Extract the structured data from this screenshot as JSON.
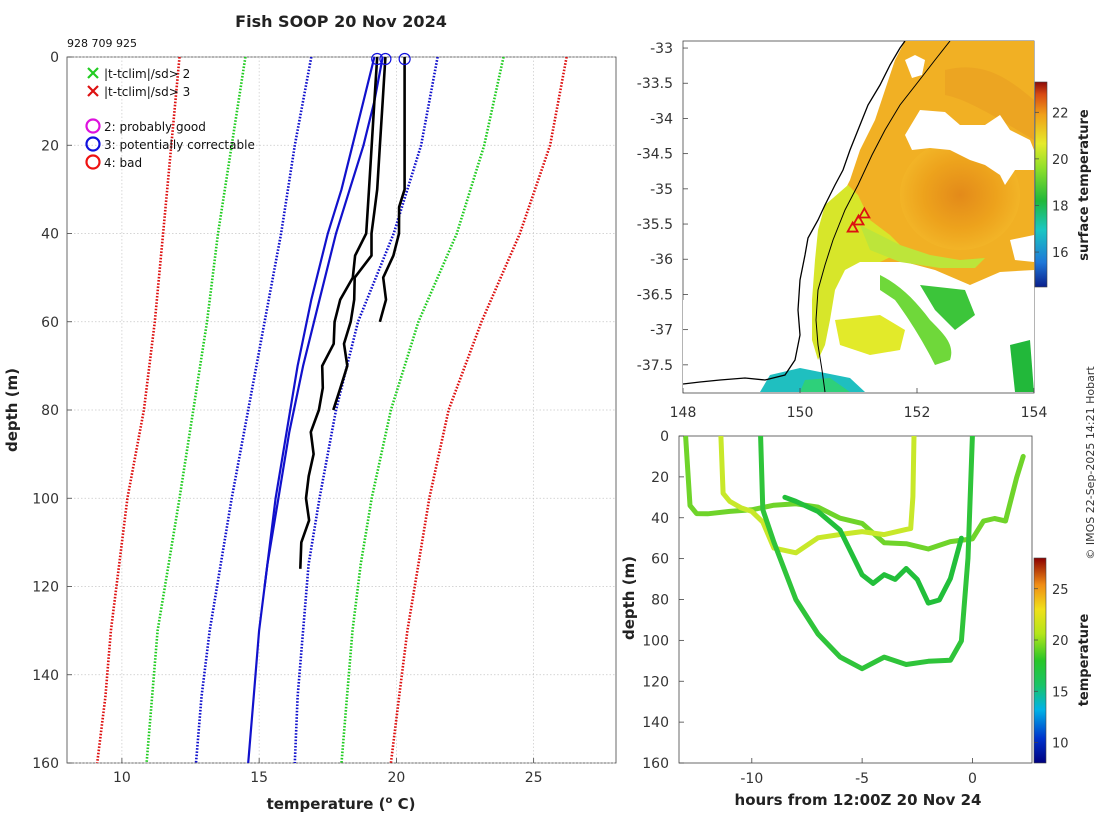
{
  "header": {
    "title": "Fish SOOP 20 Nov 2024",
    "ids": "928 709 925"
  },
  "footer": {
    "copyright": "© IMOS 22-Sep-2025 14:21 Hobart"
  },
  "legend": {
    "items": [
      {
        "symbol": "x",
        "color": "#22cc22",
        "label": "|t-tclim|/sd> 2"
      },
      {
        "symbol": "x",
        "color": "#dd1111",
        "label": "|t-tclim|/sd> 3"
      },
      {
        "symbol": "o",
        "color": "#dd11dd",
        "label": "2: probably good"
      },
      {
        "symbol": "o",
        "color": "#1111dd",
        "label": "3: potentially correctable"
      },
      {
        "symbol": "o",
        "color": "#ee1111",
        "label": "4: bad"
      }
    ]
  },
  "colors": {
    "profile": "#000000",
    "climatology_mean": "#1111cc",
    "sd2": "#22cc22",
    "sd3": "#dd1111",
    "qc_circle": "#1111dd",
    "map_marker": "#dd1111"
  },
  "chart_data": [
    {
      "id": "profile",
      "type": "line",
      "title": "Fish SOOP 20 Nov 2024",
      "xlabel": "temperature (",
      "xlabel_sup": "o",
      "xlabel_end": " C)",
      "ylabel": "depth (m)",
      "xlim": [
        8,
        28
      ],
      "ylim": [
        0,
        160
      ],
      "yreversed": true,
      "xticks": [
        10,
        15,
        20,
        25
      ],
      "yticks": [
        0,
        20,
        40,
        60,
        80,
        100,
        120,
        140,
        160
      ],
      "grid": true,
      "climatology": [
        {
          "name": "clim-sd3-left",
          "style": "dotted",
          "color": "#dd1111",
          "depth": [
            0,
            20,
            40,
            60,
            80,
            100,
            115,
            130,
            145,
            160
          ],
          "temp": [
            12.1,
            11.8,
            11.5,
            11.2,
            10.8,
            10.2,
            9.9,
            9.6,
            9.4,
            9.1
          ]
        },
        {
          "name": "clim-sd3-right",
          "style": "dotted",
          "color": "#dd1111",
          "depth": [
            0,
            20,
            40,
            60,
            80,
            100,
            115,
            130,
            145,
            160
          ],
          "temp": [
            26.2,
            25.6,
            24.5,
            23.1,
            21.9,
            21.2,
            20.8,
            20.4,
            20.1,
            19.8
          ]
        },
        {
          "name": "clim-sd2-left",
          "style": "dotted",
          "color": "#22cc22",
          "depth": [
            0,
            20,
            40,
            60,
            80,
            100,
            115,
            130,
            145,
            160
          ],
          "temp": [
            14.5,
            14.0,
            13.5,
            13.1,
            12.6,
            12.1,
            11.7,
            11.3,
            11.1,
            10.9
          ]
        },
        {
          "name": "clim-sd2-right",
          "style": "dotted",
          "color": "#22cc22",
          "depth": [
            0,
            20,
            40,
            60,
            80,
            100,
            115,
            130,
            145,
            160
          ],
          "temp": [
            23.9,
            23.2,
            22.2,
            20.8,
            19.8,
            19.1,
            18.7,
            18.4,
            18.2,
            18.0
          ]
        },
        {
          "name": "clim-sd1-left",
          "style": "dotted",
          "color": "#1111cc",
          "depth": [
            0,
            20,
            40,
            60,
            80,
            100,
            115,
            130,
            145,
            160
          ],
          "temp": [
            16.9,
            16.3,
            15.8,
            15.2,
            14.6,
            14.0,
            13.6,
            13.2,
            12.9,
            12.7
          ]
        },
        {
          "name": "clim-sd1-right",
          "style": "dotted",
          "color": "#1111cc",
          "depth": [
            0,
            20,
            40,
            60,
            80,
            100,
            115,
            130,
            145,
            160
          ],
          "temp": [
            21.5,
            20.9,
            19.9,
            18.6,
            17.8,
            17.2,
            16.8,
            16.6,
            16.4,
            16.3
          ]
        },
        {
          "name": "clim-mean-a",
          "style": "solid",
          "color": "#1111cc",
          "depth": [
            0,
            10,
            20,
            30,
            40,
            55,
            70,
            85,
            100,
            115,
            130,
            145,
            160
          ],
          "temp": [
            19.2,
            18.8,
            18.4,
            18.0,
            17.5,
            16.9,
            16.4,
            16.0,
            15.6,
            15.3,
            15.0,
            14.8,
            14.6
          ]
        },
        {
          "name": "clim-mean-b",
          "style": "solid",
          "color": "#1111cc",
          "depth": [
            0,
            10,
            20,
            30,
            40,
            55,
            70,
            85,
            100,
            115,
            120
          ],
          "temp": [
            19.5,
            19.2,
            18.8,
            18.3,
            17.8,
            17.2,
            16.6,
            16.1,
            15.7,
            15.3,
            15.2
          ]
        }
      ],
      "profiles": [
        {
          "name": "xbt-1",
          "depth": [
            0,
            10,
            20,
            30,
            40,
            45,
            50,
            55,
            60,
            65,
            70,
            75,
            80,
            85,
            90,
            95,
            100,
            105,
            110,
            116
          ],
          "temp": [
            19.3,
            19.2,
            19.1,
            19.0,
            18.9,
            18.6,
            18.3,
            18.0,
            17.8,
            17.6,
            17.4,
            17.3,
            17.1,
            17.0,
            16.9,
            16.8,
            16.8,
            16.7,
            16.6,
            16.5
          ]
        },
        {
          "name": "xbt-2",
          "depth": [
            0,
            10,
            20,
            30,
            35,
            40,
            45,
            50,
            55,
            60,
            65,
            70,
            75,
            80
          ],
          "temp": [
            19.6,
            19.5,
            19.4,
            19.3,
            19.2,
            19.1,
            19.0,
            18.6,
            18.4,
            18.3,
            18.2,
            18.1,
            18.0,
            17.7
          ]
        },
        {
          "name": "xbt-3",
          "depth": [
            0,
            10,
            20,
            30,
            34,
            40,
            45,
            50,
            55,
            60
          ],
          "temp": [
            20.3,
            20.3,
            20.3,
            20.3,
            20.1,
            20.0,
            19.9,
            19.6,
            19.5,
            19.4
          ]
        }
      ],
      "qc_circles": [
        {
          "temp": 19.3,
          "depth": 0
        },
        {
          "temp": 19.6,
          "depth": 0
        },
        {
          "temp": 20.3,
          "depth": 0
        }
      ]
    },
    {
      "id": "map",
      "type": "heatmap",
      "title": "",
      "xlim": [
        148,
        154
      ],
      "ylim": [
        -37.9,
        -32.9
      ],
      "xticks": [
        148,
        150,
        152,
        154
      ],
      "yticks": [
        -33,
        -33.5,
        -34,
        -34.5,
        -35,
        -35.5,
        -36,
        -36.5,
        -37,
        -37.5
      ],
      "colorbar": {
        "label": "surface temperature",
        "range": [
          14.5,
          23.3
        ],
        "ticks": [
          16,
          18,
          20,
          22
        ]
      },
      "markers": [
        {
          "lon": 150.9,
          "lat": -35.55
        },
        {
          "lon": 151.0,
          "lat": -35.45
        },
        {
          "lon": 151.1,
          "lat": -35.35
        }
      ]
    },
    {
      "id": "timeseries",
      "type": "scatter",
      "xlabel": "hours from 12:00Z 20 Nov 24",
      "ylabel": "depth (m)",
      "xlim": [
        -13.3,
        2.7
      ],
      "ylim": [
        0,
        160
      ],
      "yreversed": true,
      "xticks": [
        -10,
        -5,
        0
      ],
      "yticks": [
        0,
        20,
        40,
        60,
        80,
        100,
        120,
        140,
        160
      ],
      "colorbar": {
        "label": "temperature",
        "range": [
          8,
          28
        ],
        "ticks": [
          10,
          15,
          20,
          25
        ]
      },
      "series": [
        {
          "name": "tow-shallow",
          "temp": 19.5,
          "hours": [
            -13.0,
            -12.8,
            -12.5,
            -12.0,
            -11.0,
            -10.0,
            -9.0,
            -8.0,
            -7.0,
            -6.0,
            -5.0,
            -4.0,
            -3.0,
            -2.0,
            -1.0,
            0.0,
            0.5,
            1.0,
            1.5,
            2.0,
            2.3
          ],
          "depth": [
            0,
            34,
            38,
            38,
            37,
            36,
            34,
            33,
            35,
            40,
            43,
            52,
            53,
            55,
            52,
            50,
            42,
            40,
            42,
            20,
            10
          ]
        },
        {
          "name": "tow-mid",
          "temp": 21.5,
          "hours": [
            -11.4,
            -11.3,
            -11.0,
            -10.5,
            -10.0,
            -9.5,
            -9.0,
            -8.0,
            -7.0,
            -6.0,
            -5.0,
            -4.0,
            -3.0,
            -2.8,
            -2.7,
            -2.65
          ],
          "depth": [
            0,
            28,
            32,
            35,
            37,
            42,
            55,
            57,
            50,
            48,
            47,
            48,
            46,
            45,
            30,
            0
          ]
        },
        {
          "name": "tow-deep",
          "temp": 18.0,
          "hours": [
            -9.6,
            -9.5,
            -9.0,
            -8.0,
            -7.0,
            -6.0,
            -5.0,
            -4.0,
            -3.0,
            -2.0,
            -1.0,
            -0.5,
            -0.2,
            0.0
          ],
          "depth": [
            0,
            36,
            52,
            80,
            97,
            108,
            114,
            108,
            112,
            110,
            110,
            100,
            60,
            0
          ]
        },
        {
          "name": "tow-late",
          "temp": 17.0,
          "hours": [
            -8.5,
            -8.0,
            -7.0,
            -6.0,
            -5.0,
            -4.5,
            -4.0,
            -3.5,
            -3.0,
            -2.5,
            -2.0,
            -1.5,
            -1.0,
            -0.5
          ],
          "depth": [
            30,
            32,
            37,
            46,
            68,
            72,
            68,
            70,
            65,
            70,
            82,
            80,
            70,
            50
          ]
        }
      ]
    }
  ]
}
